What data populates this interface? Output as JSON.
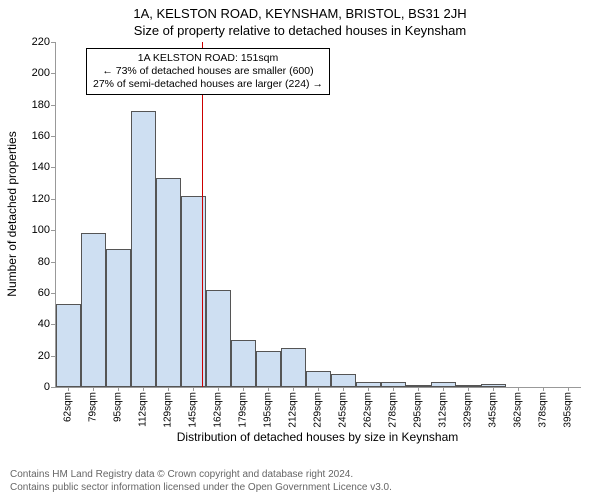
{
  "title_main": "1A, KELSTON ROAD, KEYNSHAM, BRISTOL, BS31 2JH",
  "title_sub": "Size of property relative to detached houses in Keynsham",
  "ylabel": "Number of detached properties",
  "xlabel": "Distribution of detached houses by size in Keynsham",
  "footer_line1": "Contains HM Land Registry data © Crown copyright and database right 2024.",
  "footer_line2": "Contains public sector information licensed under the Open Government Licence v3.0.",
  "chart": {
    "type": "histogram",
    "ylim": [
      0,
      220
    ],
    "ytick_step": 20,
    "bar_fill": "#cedff2",
    "bar_border": "#555555",
    "ref_line_color": "#cc0000",
    "ref_line_position_sqm": 151,
    "background_color": "#ffffff",
    "categories": [
      "62sqm",
      "79sqm",
      "95sqm",
      "112sqm",
      "129sqm",
      "145sqm",
      "162sqm",
      "179sqm",
      "195sqm",
      "212sqm",
      "229sqm",
      "245sqm",
      "262sqm",
      "278sqm",
      "295sqm",
      "312sqm",
      "329sqm",
      "345sqm",
      "362sqm",
      "378sqm",
      "395sqm"
    ],
    "values": [
      53,
      98,
      88,
      176,
      133,
      122,
      62,
      30,
      23,
      25,
      10,
      8,
      3,
      3,
      1,
      3,
      1,
      2,
      0,
      0,
      0
    ],
    "annotation": {
      "line1": "1A KELSTON ROAD: 151sqm",
      "line2": "← 73% of detached houses are smaller (600)",
      "line3": "27% of semi-detached houses are larger (224) →"
    },
    "title_fontsize": 13,
    "label_fontsize": 12,
    "tick_fontsize": 11
  }
}
